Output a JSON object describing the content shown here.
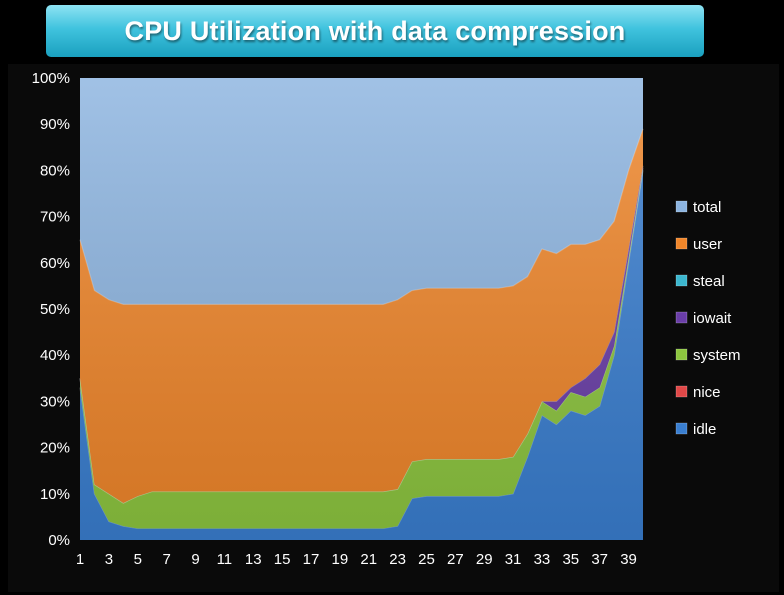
{
  "chart_data": {
    "type": "area",
    "stacked": true,
    "title": "CPU Utilization with data compression",
    "xlabel": "",
    "ylabel": "",
    "ylim": [
      0,
      100
    ],
    "yticks": [
      "0%",
      "10%",
      "20%",
      "30%",
      "40%",
      "50%",
      "60%",
      "70%",
      "80%",
      "90%",
      "100%"
    ],
    "x": [
      1,
      2,
      3,
      4,
      5,
      6,
      7,
      8,
      9,
      10,
      11,
      12,
      13,
      14,
      15,
      16,
      17,
      18,
      19,
      20,
      21,
      22,
      23,
      24,
      25,
      26,
      27,
      28,
      29,
      30,
      31,
      32,
      33,
      34,
      35,
      36,
      37,
      38,
      39,
      40
    ],
    "xtick_labels": [
      "1",
      "3",
      "5",
      "7",
      "9",
      "11",
      "13",
      "15",
      "17",
      "19",
      "21",
      "23",
      "25",
      "27",
      "29",
      "31",
      "33",
      "35",
      "37",
      "39"
    ],
    "legend_position": "right",
    "series": [
      {
        "name": "idle",
        "color": "#3a7fd1",
        "values": [
          33,
          10,
          4,
          3,
          2.5,
          2.5,
          2.5,
          2.5,
          2.5,
          2.5,
          2.5,
          2.5,
          2.5,
          2.5,
          2.5,
          2.5,
          2.5,
          2.5,
          2.5,
          2.5,
          2.5,
          2.5,
          3,
          9,
          9.5,
          9.5,
          9.5,
          9.5,
          9.5,
          9.5,
          10,
          18,
          27,
          25,
          28,
          27,
          29,
          40,
          60,
          80
        ]
      },
      {
        "name": "nice",
        "color": "#e04848",
        "values": [
          0,
          0,
          0,
          0,
          0,
          0,
          0,
          0,
          0,
          0,
          0,
          0,
          0,
          0,
          0,
          0,
          0,
          0,
          0,
          0,
          0,
          0,
          0,
          0,
          0,
          0,
          0,
          0,
          0,
          0,
          0,
          0,
          0,
          0,
          0,
          0,
          0,
          0,
          0,
          0
        ]
      },
      {
        "name": "system",
        "color": "#8dc63f",
        "values": [
          2,
          2,
          6,
          5,
          7,
          8,
          8,
          8,
          8,
          8,
          8,
          8,
          8,
          8,
          8,
          8,
          8,
          8,
          8,
          8,
          8,
          8,
          8,
          8,
          8,
          8,
          8,
          8,
          8,
          8,
          8,
          5,
          3,
          3,
          4,
          4,
          4,
          2,
          1,
          0.5
        ]
      },
      {
        "name": "iowait",
        "color": "#6a3ea8",
        "values": [
          0,
          0,
          0,
          0,
          0,
          0,
          0,
          0,
          0,
          0,
          0,
          0,
          0,
          0,
          0,
          0,
          0,
          0,
          0,
          0,
          0,
          0,
          0,
          0,
          0,
          0,
          0,
          0,
          0,
          0,
          0,
          0,
          0,
          2,
          1,
          4,
          5,
          3,
          2,
          0.5
        ]
      },
      {
        "name": "steal",
        "color": "#3cb7cf",
        "values": [
          0,
          0,
          0,
          0,
          0,
          0,
          0,
          0,
          0,
          0,
          0,
          0,
          0,
          0,
          0,
          0,
          0,
          0,
          0,
          0,
          0,
          0,
          0,
          0,
          0,
          0,
          0,
          0,
          0,
          0,
          0,
          0,
          0,
          0,
          0,
          0,
          0,
          0,
          0,
          0
        ]
      },
      {
        "name": "user",
        "color": "#f0862a",
        "values": [
          30,
          42,
          42,
          43,
          41.5,
          40.5,
          40.5,
          40.5,
          40.5,
          40.5,
          40.5,
          40.5,
          40.5,
          40.5,
          40.5,
          40.5,
          40.5,
          40.5,
          40.5,
          40.5,
          40.5,
          40.5,
          41,
          37,
          37,
          37,
          37,
          37,
          37,
          37,
          37,
          34,
          33,
          32,
          31,
          29,
          27,
          24,
          17,
          8
        ]
      },
      {
        "name": "total",
        "color": "#8cb4e0",
        "values": [
          100,
          100,
          100,
          100,
          100,
          100,
          100,
          100,
          100,
          100,
          100,
          100,
          100,
          100,
          100,
          100,
          100,
          100,
          100,
          100,
          100,
          100,
          100,
          100,
          100,
          100,
          100,
          100,
          100,
          100,
          100,
          100,
          100,
          100,
          100,
          100,
          100,
          100,
          100,
          100
        ]
      }
    ]
  }
}
